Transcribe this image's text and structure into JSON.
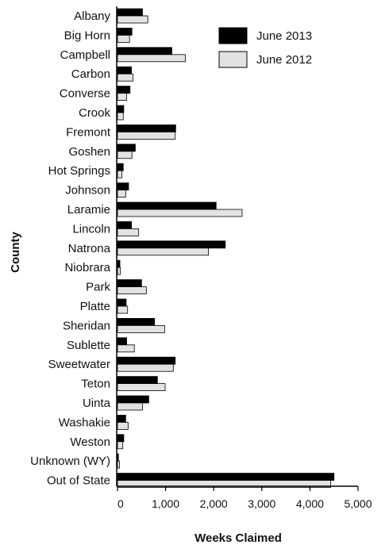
{
  "chart_data": {
    "type": "bar",
    "orientation": "horizontal",
    "ylabel": "County",
    "xlabel": "Weeks Claimed",
    "xlim": [
      0,
      5000
    ],
    "xticks": [
      0,
      1000,
      2000,
      3000,
      4000,
      5000
    ],
    "xtick_labels": [
      "0",
      "1,000",
      "2,000",
      "3,000",
      "4,000",
      "5,000"
    ],
    "categories": [
      "Albany",
      "Big Horn",
      "Campbell",
      "Carbon",
      "Converse",
      "Crook",
      "Fremont",
      "Goshen",
      "Hot Springs",
      "Johnson",
      "Laramie",
      "Lincoln",
      "Natrona",
      "Niobrara",
      "Park",
      "Platte",
      "Sheridan",
      "Sublette",
      "Sweetwater",
      "Teton",
      "Uinta",
      "Washakie",
      "Weston",
      "Unknown (WY)",
      "Out of State"
    ],
    "series": [
      {
        "name": "June 2013",
        "color": "#000000",
        "values": [
          520,
          300,
          1130,
          290,
          260,
          130,
          1210,
          370,
          120,
          230,
          2050,
          290,
          2240,
          50,
          500,
          180,
          770,
          190,
          1200,
          830,
          650,
          170,
          130,
          20,
          4500
        ]
      },
      {
        "name": "June 2012",
        "color": "#e2e2e2",
        "values": [
          630,
          250,
          1410,
          320,
          190,
          120,
          1200,
          300,
          90,
          170,
          2590,
          440,
          1890,
          60,
          600,
          210,
          980,
          350,
          1160,
          990,
          520,
          220,
          110,
          40,
          4430
        ]
      }
    ],
    "legend_position": "top-right",
    "grid": false
  }
}
